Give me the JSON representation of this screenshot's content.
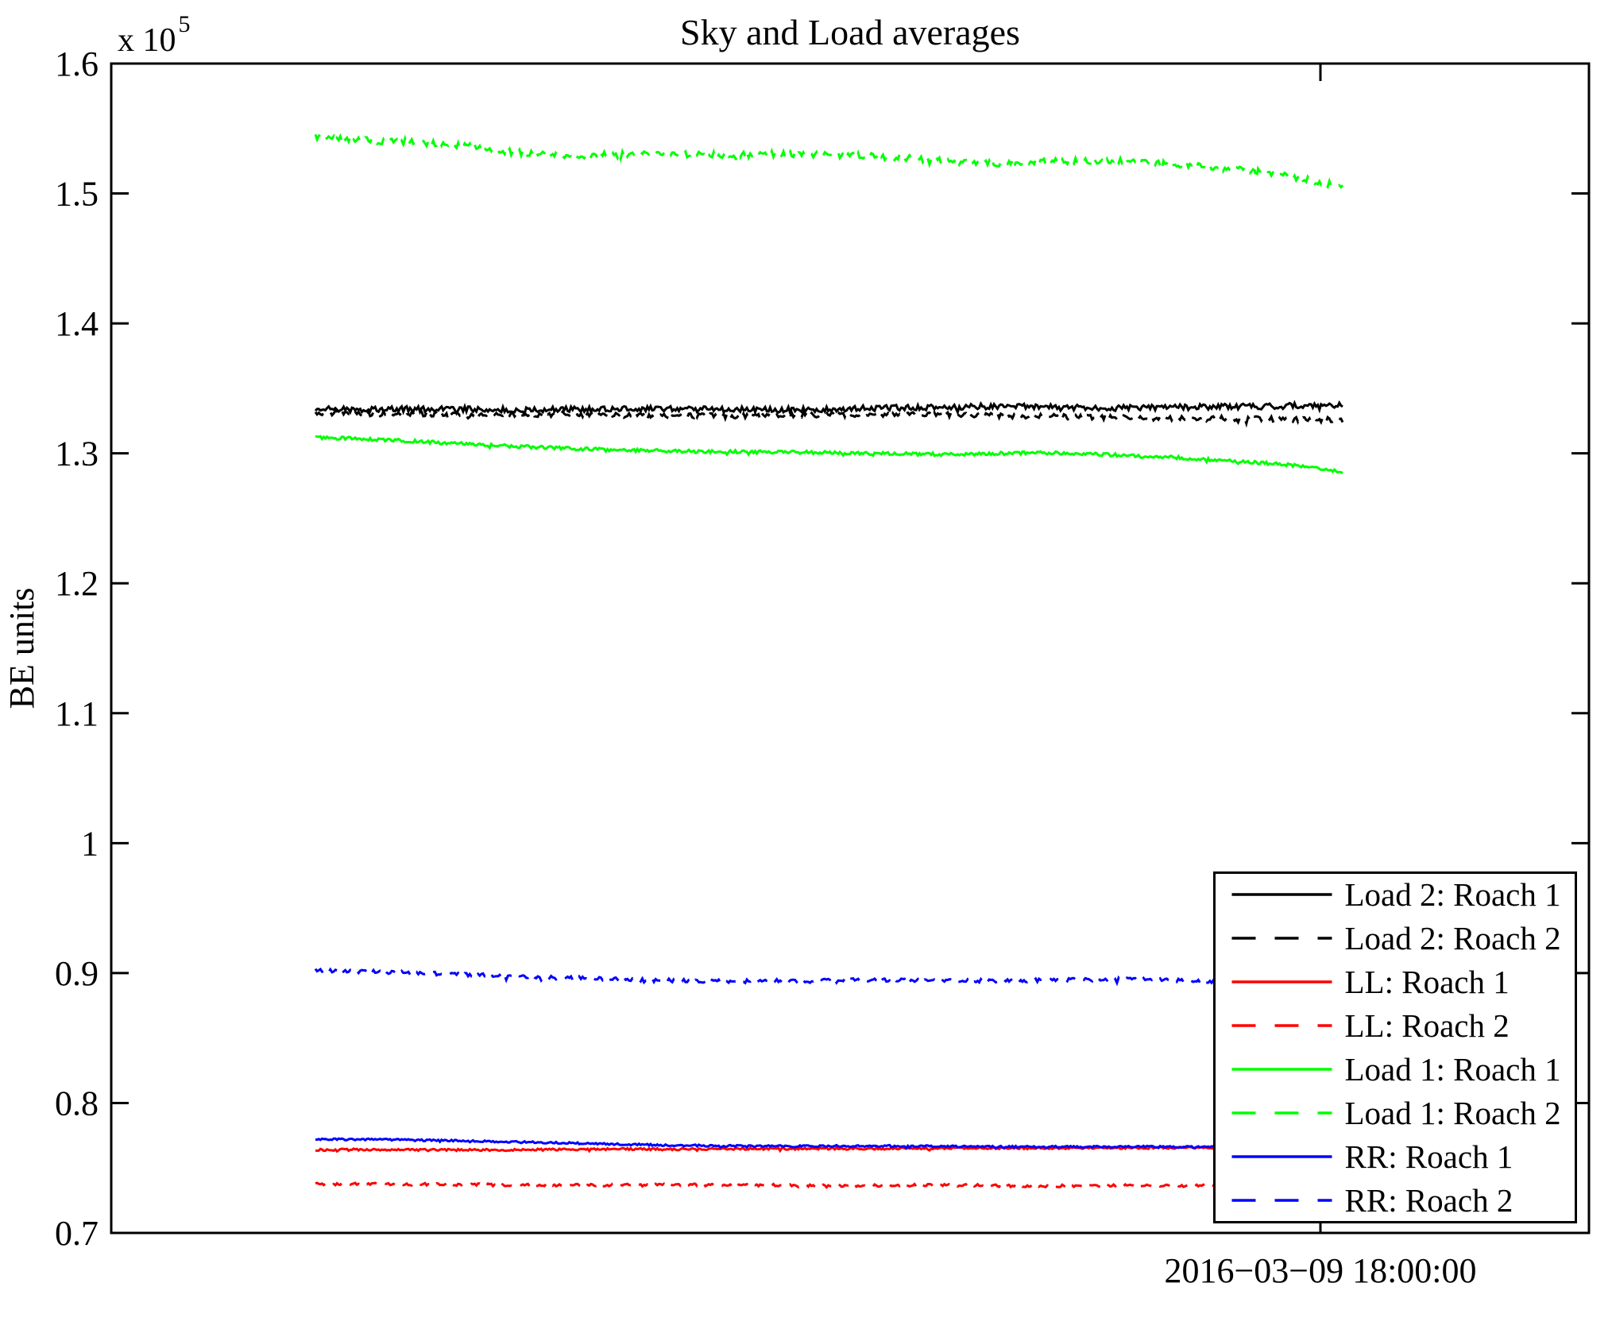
{
  "title": "Sky and Load averages",
  "y_axis": {
    "label": "BE units",
    "scale_base": "x 10",
    "scale_exponent": "5",
    "tick_labels": [
      "1.6",
      "1.5",
      "1.4",
      "1.3",
      "1.2",
      "1.1",
      "1",
      "0.9",
      "0.8",
      "0.7"
    ]
  },
  "x_axis": {
    "tick_label": "2016−03−09 18:00:00"
  },
  "legend": {
    "position": "lower right",
    "entries": [
      "Load 2: Roach 1",
      "Load 2: Roach 2",
      "LL: Roach 1",
      "LL: Roach 2",
      "Load 1: Roach 1",
      "Load 1: Roach 2",
      "RR: Roach 1",
      "RR: Roach 2"
    ]
  },
  "chart_data": {
    "type": "line",
    "title": "Sky and Load averages",
    "xlabel": "",
    "ylabel": "BE units",
    "y_unit_multiplier": 100000,
    "ylim": [
      0.7,
      1.6
    ],
    "y_ticks": [
      1.6,
      1.5,
      1.4,
      1.3,
      1.2,
      1.1,
      1.0,
      0.9,
      0.8,
      0.7
    ],
    "x_tick_labels": [
      "2016−03−09 18:00:00"
    ],
    "grid": false,
    "legend_position": "lower right",
    "note": "values are in units of 1e5 BE units; anchor samples are uniformly spaced across the plotted time span; traces are noisy high-frequency data",
    "series": [
      {
        "name": "Load 2: Roach 1",
        "color": "#000000",
        "line_style": "solid",
        "noise_amplitude": 0.0022,
        "values": [
          1.334,
          1.3338,
          1.3342,
          1.334,
          1.3338,
          1.334,
          1.3345,
          1.3342,
          1.3338,
          1.3335,
          1.334,
          1.3348,
          1.3355,
          1.336,
          1.3358,
          1.3352,
          1.335,
          1.3355,
          1.336,
          1.3365,
          1.3368
        ]
      },
      {
        "name": "Load 2: Roach 2",
        "color": "#000000",
        "line_style": "dashed",
        "noise_amplitude": 0.002,
        "values": [
          1.331,
          1.3305,
          1.33,
          1.3298,
          1.33,
          1.3302,
          1.3298,
          1.3292,
          1.3288,
          1.3292,
          1.3298,
          1.33,
          1.3298,
          1.3292,
          1.3285,
          1.328,
          1.3275,
          1.3272,
          1.3268,
          1.3262,
          1.3258
        ]
      },
      {
        "name": "LL: Roach 1",
        "color": "#ff0000",
        "line_style": "solid",
        "noise_amplitude": 0.0008,
        "values": [
          0.764,
          0.7641,
          0.764,
          0.7638,
          0.764,
          0.7643,
          0.7645,
          0.7644,
          0.7646,
          0.7648,
          0.765,
          0.7649,
          0.765,
          0.7652,
          0.7653,
          0.7654,
          0.7655,
          0.7656,
          0.7657,
          0.7658,
          0.766
        ]
      },
      {
        "name": "LL: Roach 2",
        "color": "#ff0000",
        "line_style": "dashed",
        "noise_amplitude": 0.001,
        "values": [
          0.7378,
          0.7376,
          0.7374,
          0.7371,
          0.7369,
          0.7367,
          0.7369,
          0.7371,
          0.7368,
          0.7366,
          0.7364,
          0.7366,
          0.7368,
          0.7365,
          0.7362,
          0.7364,
          0.7366,
          0.7363,
          0.736,
          0.7359,
          0.736
        ]
      },
      {
        "name": "Load 1: Roach 1",
        "color": "#00ff00",
        "line_style": "solid",
        "noise_amplitude": 0.0012,
        "values": [
          1.312,
          1.3115,
          1.3105,
          1.3092,
          1.3078,
          1.3065,
          1.3052,
          1.3042,
          1.3032,
          1.3025,
          1.302,
          1.3016,
          1.3013,
          1.3011,
          1.3009,
          1.3006,
          1.3002,
          1.2997,
          1.2993,
          1.2995,
          1.3,
          1.3004,
          1.3,
          1.2992,
          1.2982,
          1.297,
          1.2955,
          1.2938,
          1.292,
          1.29,
          1.2858
        ]
      },
      {
        "name": "Load 1: Roach 2",
        "color": "#00ff00",
        "line_style": "dashed",
        "noise_amplitude": 0.0025,
        "values": [
          1.543,
          1.5415,
          1.54,
          1.5398,
          1.538,
          1.534,
          1.531,
          1.53,
          1.5295,
          1.53,
          1.5305,
          1.53,
          1.5295,
          1.53,
          1.5305,
          1.53,
          1.529,
          1.528,
          1.526,
          1.524,
          1.523,
          1.524,
          1.525,
          1.5255,
          1.5245,
          1.523,
          1.521,
          1.5185,
          1.515,
          1.5105,
          1.5055
        ]
      },
      {
        "name": "RR: Roach 1",
        "color": "#0000ff",
        "line_style": "solid",
        "noise_amplitude": 0.0007,
        "values": [
          0.7722,
          0.772,
          0.7718,
          0.7714,
          0.771,
          0.7705,
          0.77,
          0.7694,
          0.7688,
          0.7682,
          0.7677,
          0.7673,
          0.767,
          0.7668,
          0.7667,
          0.7668,
          0.767,
          0.7669,
          0.7667,
          0.7665,
          0.7663,
          0.7662,
          0.7663,
          0.7665,
          0.7664,
          0.7662,
          0.766,
          0.7659,
          0.7658,
          0.7658,
          0.7658
        ]
      },
      {
        "name": "RR: Roach 2",
        "color": "#0000ff",
        "line_style": "dashed",
        "noise_amplitude": 0.0013,
        "values": [
          0.902,
          0.9015,
          0.9008,
          0.9,
          0.8992,
          0.8983,
          0.8975,
          0.8968,
          0.896,
          0.8952,
          0.8945,
          0.894,
          0.8938,
          0.894,
          0.8942,
          0.8945,
          0.8947,
          0.8945,
          0.8942,
          0.894,
          0.8942,
          0.8945,
          0.895,
          0.8955,
          0.8952,
          0.8945,
          0.8935,
          0.8925,
          0.8915,
          0.8905,
          0.889
        ]
      }
    ]
  }
}
